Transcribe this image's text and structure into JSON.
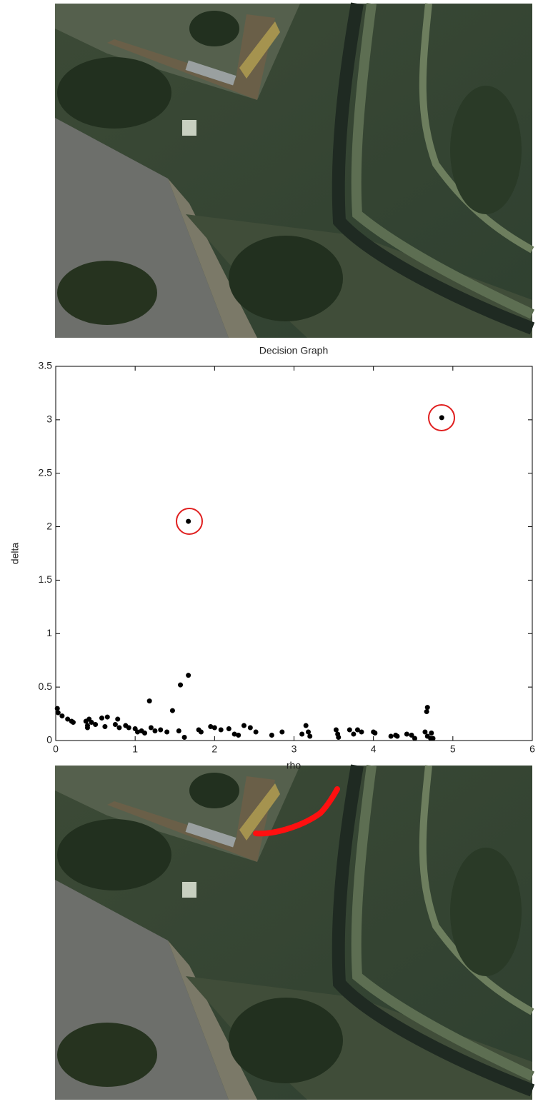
{
  "chart_data": {
    "type": "scatter",
    "title": "Decision Graph",
    "x_label": "rho",
    "y_label": "delta",
    "x": [
      4.86,
      1.67,
      1.67,
      1.57,
      1.18,
      1.47,
      4.68,
      4.67,
      0.02,
      0.03,
      0.08,
      0.15,
      0.2,
      0.22,
      0.38,
      0.42,
      0.45,
      0.4,
      0.4,
      0.5,
      0.58,
      0.65,
      0.62,
      0.75,
      0.78,
      0.8,
      0.88,
      0.92,
      1.0,
      1.03,
      1.08,
      1.12,
      1.2,
      1.25,
      1.32,
      1.4,
      1.55,
      1.62,
      1.8,
      1.83,
      1.95,
      2.0,
      2.08,
      2.18,
      2.25,
      2.3,
      2.37,
      2.45,
      2.52,
      2.72,
      2.85,
      3.1,
      3.15,
      3.18,
      3.2,
      3.53,
      3.55,
      3.56,
      3.7,
      3.75,
      3.8,
      3.85,
      4.0,
      4.02,
      4.22,
      4.28,
      4.3,
      4.42,
      4.48,
      4.52,
      4.65,
      4.68,
      4.72,
      4.73,
      4.75
    ],
    "values": [
      3.02,
      2.05,
      0.61,
      0.52,
      0.37,
      0.28,
      0.31,
      0.27,
      0.3,
      0.26,
      0.23,
      0.2,
      0.18,
      0.17,
      0.18,
      0.2,
      0.17,
      0.14,
      0.12,
      0.15,
      0.21,
      0.22,
      0.13,
      0.15,
      0.2,
      0.12,
      0.14,
      0.12,
      0.11,
      0.08,
      0.09,
      0.07,
      0.12,
      0.09,
      0.1,
      0.08,
      0.09,
      0.03,
      0.1,
      0.08,
      0.13,
      0.12,
      0.1,
      0.11,
      0.06,
      0.05,
      0.14,
      0.12,
      0.08,
      0.05,
      0.08,
      0.06,
      0.14,
      0.08,
      0.04,
      0.1,
      0.06,
      0.03,
      0.1,
      0.06,
      0.1,
      0.08,
      0.08,
      0.07,
      0.04,
      0.05,
      0.04,
      0.06,
      0.05,
      0.02,
      0.08,
      0.04,
      0.02,
      0.07,
      0.02
    ],
    "color": "#000000",
    "xlim": [
      0,
      6
    ],
    "ylim": [
      0,
      3.5
    ],
    "xticks": [
      0,
      1,
      2,
      3,
      4,
      5,
      6
    ],
    "yticks": [
      0,
      0.5,
      1,
      1.5,
      2,
      2.5,
      3,
      3.5
    ]
  }
}
